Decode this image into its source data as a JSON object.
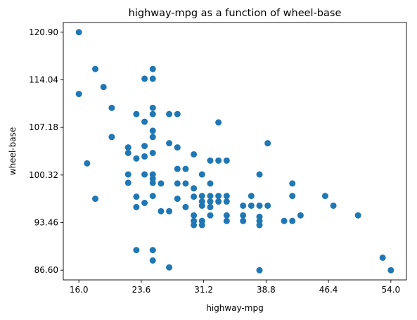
{
  "chart_data": {
    "type": "scatter",
    "title": "highway-mpg as a function of wheel-base",
    "xlabel": "highway-mpg",
    "ylabel": "wheel-base",
    "xlim": [
      14.1,
      55.9
    ],
    "ylim": [
      85.2,
      122.3
    ],
    "x_ticks": [
      "16.0",
      "23.6",
      "31.2",
      "38.8",
      "46.4",
      "54.0"
    ],
    "y_ticks": [
      "86.60",
      "93.46",
      "100.32",
      "107.18",
      "114.04",
      "120.90"
    ],
    "x_tick_values": [
      16.0,
      23.6,
      31.2,
      38.8,
      46.4,
      54.0
    ],
    "y_tick_values": [
      86.6,
      93.46,
      100.32,
      107.18,
      114.04,
      120.9
    ],
    "grid": false,
    "marker_color": "#1f77b4",
    "points": [
      [
        16,
        120.9
      ],
      [
        16,
        112.0
      ],
      [
        17,
        102.0
      ],
      [
        18,
        115.6
      ],
      [
        18,
        96.9
      ],
      [
        19,
        113.0
      ],
      [
        20,
        110.0
      ],
      [
        20,
        105.8
      ],
      [
        22,
        104.3
      ],
      [
        22,
        103.5
      ],
      [
        22,
        100.4
      ],
      [
        22,
        99.2
      ],
      [
        23,
        109.1
      ],
      [
        23,
        102.7
      ],
      [
        23,
        97.2
      ],
      [
        23,
        95.7
      ],
      [
        23,
        89.5
      ],
      [
        24,
        114.2
      ],
      [
        24,
        108.0
      ],
      [
        24,
        104.5
      ],
      [
        24,
        103.0
      ],
      [
        24,
        100.4
      ],
      [
        24,
        96.3
      ],
      [
        25,
        115.6
      ],
      [
        25,
        114.2
      ],
      [
        25,
        110.0
      ],
      [
        25,
        109.1
      ],
      [
        25,
        106.7
      ],
      [
        25,
        105.8
      ],
      [
        25,
        103.5
      ],
      [
        25,
        100.4
      ],
      [
        25,
        99.8
      ],
      [
        25,
        99.2
      ],
      [
        25,
        97.3
      ],
      [
        25,
        89.5
      ],
      [
        25,
        88.0
      ],
      [
        26,
        99.1
      ],
      [
        26,
        95.1
      ],
      [
        27,
        109.1
      ],
      [
        27,
        104.9
      ],
      [
        27,
        95.1
      ],
      [
        27,
        87.0
      ],
      [
        28,
        109.1
      ],
      [
        28,
        104.3
      ],
      [
        28,
        101.2
      ],
      [
        28,
        99.1
      ],
      [
        28,
        96.9
      ],
      [
        29,
        101.2
      ],
      [
        29,
        99.1
      ],
      [
        29,
        95.7
      ],
      [
        30,
        103.3
      ],
      [
        30,
        98.4
      ],
      [
        30,
        97.2
      ],
      [
        30,
        94.5
      ],
      [
        30,
        93.1
      ],
      [
        30,
        93.7
      ],
      [
        31,
        100.4
      ],
      [
        31,
        97.3
      ],
      [
        31,
        96.5
      ],
      [
        31,
        95.9
      ],
      [
        31,
        93.7
      ],
      [
        31,
        93.1
      ],
      [
        32,
        102.4
      ],
      [
        32,
        99.1
      ],
      [
        32,
        97.3
      ],
      [
        32,
        96.5
      ],
      [
        32,
        95.7
      ],
      [
        32,
        94.5
      ],
      [
        33,
        107.9
      ],
      [
        33,
        102.4
      ],
      [
        33,
        97.3
      ],
      [
        33,
        96.5
      ],
      [
        34,
        102.4
      ],
      [
        34,
        97.3
      ],
      [
        34,
        96.5
      ],
      [
        34,
        94.5
      ],
      [
        34,
        93.7
      ],
      [
        36,
        95.9
      ],
      [
        36,
        94.5
      ],
      [
        36,
        93.7
      ],
      [
        37,
        97.3
      ],
      [
        37,
        95.9
      ],
      [
        38,
        100.4
      ],
      [
        38,
        95.9
      ],
      [
        38,
        94.3
      ],
      [
        38,
        93.7
      ],
      [
        38,
        93.1
      ],
      [
        38,
        86.6
      ],
      [
        39,
        104.9
      ],
      [
        39,
        95.9
      ],
      [
        41,
        93.7
      ],
      [
        42,
        99.1
      ],
      [
        42,
        97.3
      ],
      [
        42,
        93.7
      ],
      [
        43,
        94.5
      ],
      [
        46,
        97.3
      ],
      [
        47,
        95.9
      ],
      [
        50,
        94.5
      ],
      [
        53,
        88.4
      ],
      [
        54,
        86.6
      ]
    ]
  }
}
